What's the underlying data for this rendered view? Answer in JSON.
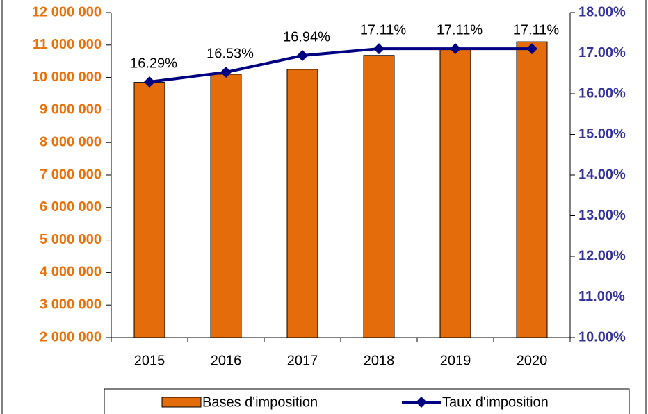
{
  "chart_data": {
    "type": "bar",
    "categories": [
      "2015",
      "2016",
      "2017",
      "2018",
      "2019",
      "2020"
    ],
    "series": [
      {
        "name": "Bases d'imposition",
        "type": "bar",
        "color": "#e46c0a",
        "values": [
          9850000,
          10100000,
          10250000,
          10680000,
          10890000,
          11100000
        ]
      },
      {
        "name": "Taux d'imposition",
        "type": "line",
        "color": "#000080",
        "axis": "y2",
        "values": [
          16.29,
          16.53,
          16.94,
          17.11,
          17.11,
          17.11
        ],
        "value_labels": [
          "16.29%",
          "16.53%",
          "16.94%",
          "17.11%",
          "17.11%",
          "17.11%"
        ]
      }
    ],
    "ylim": [
      2000000,
      12000000
    ],
    "yticks": [
      {
        "value": 2000000,
        "label": "2 000 000"
      },
      {
        "value": 3000000,
        "label": "3 000 000"
      },
      {
        "value": 4000000,
        "label": "4 000 000"
      },
      {
        "value": 5000000,
        "label": "5 000 000"
      },
      {
        "value": 6000000,
        "label": "6 000 000"
      },
      {
        "value": 7000000,
        "label": "7 000 000"
      },
      {
        "value": 8000000,
        "label": "8 000 000"
      },
      {
        "value": 9000000,
        "label": "9 000 000"
      },
      {
        "value": 10000000,
        "label": "10 000 000"
      },
      {
        "value": 11000000,
        "label": "11 000 000"
      },
      {
        "value": 12000000,
        "label": "12 000 000"
      }
    ],
    "y2lim": [
      10,
      18
    ],
    "y2ticks": [
      {
        "value": 10,
        "label": "10.00%"
      },
      {
        "value": 11,
        "label": "11.00%"
      },
      {
        "value": 12,
        "label": "12.00%"
      },
      {
        "value": 13,
        "label": "13.00%"
      },
      {
        "value": 14,
        "label": "14.00%"
      },
      {
        "value": 15,
        "label": "15.00%"
      },
      {
        "value": 16,
        "label": "16.00%"
      },
      {
        "value": 17,
        "label": "17.00%"
      },
      {
        "value": 18,
        "label": "18.00%"
      }
    ],
    "legend": "bottom"
  }
}
